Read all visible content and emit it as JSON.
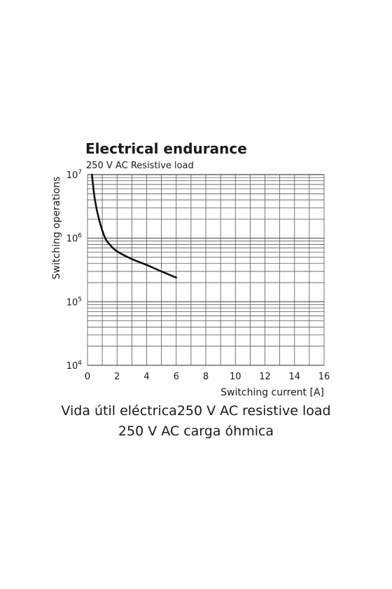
{
  "chart_data": {
    "type": "line",
    "title": "Electrical endurance",
    "subtitle": "250 V AC Resistive load",
    "xlabel": "Switching current [A]",
    "ylabel": "Switching operations",
    "xlim": [
      0,
      16
    ],
    "ylim": [
      10000,
      10000000
    ],
    "yscale": "log",
    "x_ticks": [
      "0",
      "2",
      "4",
      "6",
      "8",
      "10",
      "12",
      "14",
      "16"
    ],
    "y_ticks": [
      {
        "base": "10",
        "exp": "4"
      },
      {
        "base": "10",
        "exp": "5"
      },
      {
        "base": "10",
        "exp": "6"
      },
      {
        "base": "10",
        "exp": "7"
      }
    ],
    "grid": true,
    "series": [
      {
        "points": [
          [
            0.3,
            10000000
          ],
          [
            0.5,
            4000000
          ],
          [
            0.8,
            1900000
          ],
          [
            1.2,
            1000000
          ],
          [
            1.6,
            750000
          ],
          [
            2.0,
            620000
          ],
          [
            3.0,
            470000
          ],
          [
            4.0,
            380000
          ],
          [
            5.0,
            300000
          ],
          [
            6.0,
            240000
          ]
        ]
      }
    ]
  },
  "caption": {
    "line1": "Vida útil eléctrica250 V AC resistive load",
    "line2": "250 V AC carga óhmica"
  }
}
